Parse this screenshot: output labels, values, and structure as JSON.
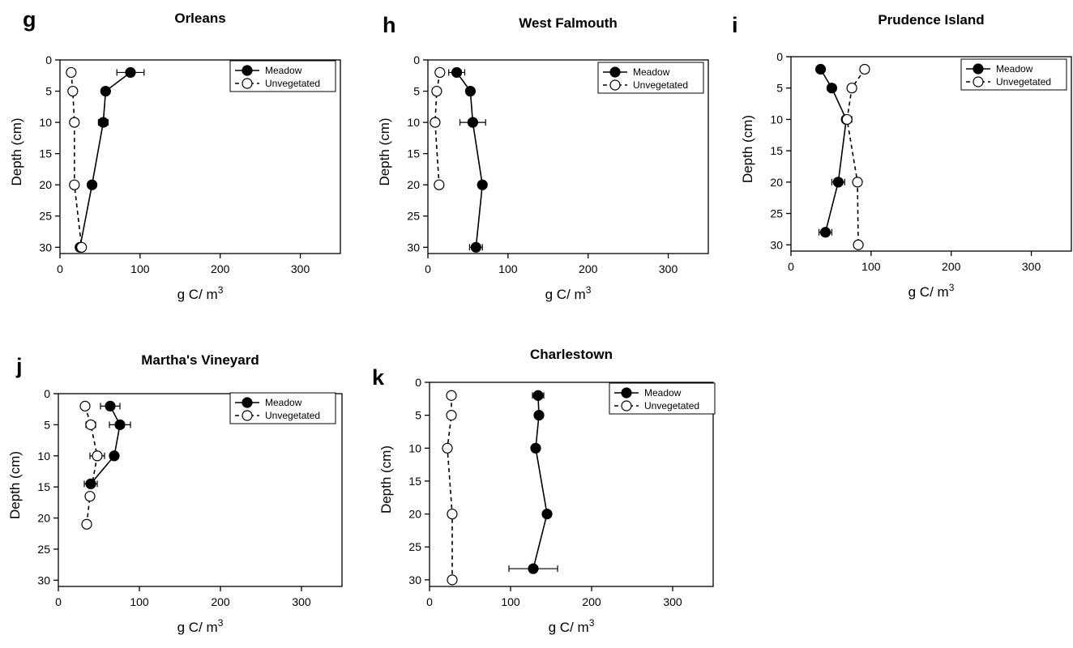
{
  "figure": {
    "background": "#ffffff",
    "line_color": "#000000",
    "meadow_fill": "#000000",
    "unvegetated_fill": "#ffffff"
  },
  "chart_data": [
    {
      "type": "line",
      "panel_label": "g",
      "title": "Orleans",
      "xlabel": "g C/ m",
      "xlabel_sup": "3",
      "ylabel": "Depth (cm)",
      "xlim": [
        0,
        350
      ],
      "ylim": [
        0,
        31
      ],
      "y_inverted": true,
      "x_ticks": [
        0,
        100,
        200,
        300
      ],
      "y_ticks": [
        0,
        5,
        10,
        15,
        20,
        25,
        30
      ],
      "legend": "top-right",
      "series": [
        {
          "name": "Meadow",
          "style": "solid",
          "marker": "filled-circle",
          "points": [
            {
              "x": 88,
              "y": 2,
              "xerr": 17
            },
            {
              "x": 57,
              "y": 5,
              "xerr": 0
            },
            {
              "x": 54,
              "y": 10,
              "xerr": 6
            },
            {
              "x": 40,
              "y": 20,
              "xerr": 0
            },
            {
              "x": 25,
              "y": 30,
              "xerr": 0
            }
          ]
        },
        {
          "name": "Unvegetated",
          "style": "dashed",
          "marker": "open-circle",
          "points": [
            {
              "x": 14,
              "y": 2,
              "xerr": 0
            },
            {
              "x": 16,
              "y": 5,
              "xerr": 0
            },
            {
              "x": 18,
              "y": 10,
              "xerr": 0
            },
            {
              "x": 18,
              "y": 20,
              "xerr": 0
            },
            {
              "x": 27,
              "y": 30,
              "xerr": 0
            }
          ]
        }
      ]
    },
    {
      "type": "line",
      "panel_label": "h",
      "title": "West Falmouth",
      "xlabel": "g C/ m",
      "xlabel_sup": "3",
      "ylabel": "Depth (cm)",
      "xlim": [
        0,
        350
      ],
      "ylim": [
        0,
        31
      ],
      "y_inverted": true,
      "x_ticks": [
        0,
        100,
        200,
        300
      ],
      "y_ticks": [
        0,
        5,
        10,
        15,
        20,
        25,
        30
      ],
      "legend": "top-right",
      "series": [
        {
          "name": "Meadow",
          "style": "solid",
          "marker": "filled-circle",
          "points": [
            {
              "x": 36,
              "y": 2,
              "xerr": 10
            },
            {
              "x": 53,
              "y": 5,
              "xerr": 0
            },
            {
              "x": 56,
              "y": 10,
              "xerr": 16
            },
            {
              "x": 68,
              "y": 20,
              "xerr": 0
            },
            {
              "x": 60,
              "y": 30,
              "xerr": 8
            }
          ]
        },
        {
          "name": "Unvegetated",
          "style": "dashed",
          "marker": "open-circle",
          "points": [
            {
              "x": 15,
              "y": 2,
              "xerr": 0
            },
            {
              "x": 11,
              "y": 5,
              "xerr": 0
            },
            {
              "x": 9,
              "y": 10,
              "xerr": 0
            },
            {
              "x": 14,
              "y": 20,
              "xerr": 0
            }
          ]
        }
      ]
    },
    {
      "type": "line",
      "panel_label": "i",
      "title": "Prudence Island",
      "xlabel": "g C/ m",
      "xlabel_sup": "3",
      "ylabel": "Depth (cm)",
      "xlim": [
        0,
        350
      ],
      "ylim": [
        0,
        31
      ],
      "y_inverted": true,
      "x_ticks": [
        0,
        100,
        200,
        300
      ],
      "y_ticks": [
        0,
        5,
        10,
        15,
        20,
        25,
        30
      ],
      "legend": "top-right",
      "series": [
        {
          "name": "Meadow",
          "style": "solid",
          "marker": "filled-circle",
          "points": [
            {
              "x": 37,
              "y": 2,
              "xerr": 0
            },
            {
              "x": 51,
              "y": 5,
              "xerr": 0
            },
            {
              "x": 69,
              "y": 10,
              "xerr": 0
            },
            {
              "x": 59,
              "y": 20,
              "xerr": 8
            },
            {
              "x": 43,
              "y": 28,
              "xerr": 8
            }
          ]
        },
        {
          "name": "Unvegetated",
          "style": "dashed",
          "marker": "open-circle",
          "points": [
            {
              "x": 92,
              "y": 2,
              "xerr": 5
            },
            {
              "x": 76,
              "y": 5,
              "xerr": 0
            },
            {
              "x": 70,
              "y": 10,
              "xerr": 6
            },
            {
              "x": 83,
              "y": 20,
              "xerr": 0
            },
            {
              "x": 84,
              "y": 30,
              "xerr": 0
            }
          ]
        }
      ]
    },
    {
      "type": "line",
      "panel_label": "j",
      "title": "Martha's Vineyard",
      "xlabel": "g C/ m",
      "xlabel_sup": "3",
      "ylabel": "Depth (cm)",
      "xlim": [
        0,
        350
      ],
      "ylim": [
        0,
        31
      ],
      "y_inverted": true,
      "x_ticks": [
        0,
        100,
        200,
        300
      ],
      "y_ticks": [
        0,
        5,
        10,
        15,
        20,
        25,
        30
      ],
      "legend": "top-right",
      "series": [
        {
          "name": "Meadow",
          "style": "solid",
          "marker": "filled-circle",
          "points": [
            {
              "x": 64,
              "y": 2,
              "xerr": 12
            },
            {
              "x": 76,
              "y": 5,
              "xerr": 13
            },
            {
              "x": 69,
              "y": 10,
              "xerr": 0
            },
            {
              "x": 40,
              "y": 14.5,
              "xerr": 8
            }
          ]
        },
        {
          "name": "Unvegetated",
          "style": "dashed",
          "marker": "open-circle",
          "points": [
            {
              "x": 33,
              "y": 2,
              "xerr": 0
            },
            {
              "x": 40,
              "y": 5,
              "xerr": 6
            },
            {
              "x": 48,
              "y": 10,
              "xerr": 9
            },
            {
              "x": 39,
              "y": 16.5,
              "xerr": 0
            },
            {
              "x": 35,
              "y": 21,
              "xerr": 0
            }
          ]
        }
      ]
    },
    {
      "type": "line",
      "panel_label": "k",
      "title": "Charlestown",
      "xlabel": "g C/ m",
      "xlabel_sup": "3",
      "ylabel": "Depth (cm)",
      "xlim": [
        0,
        350
      ],
      "ylim": [
        0,
        31
      ],
      "y_inverted": true,
      "x_ticks": [
        0,
        100,
        200,
        300
      ],
      "y_ticks": [
        0,
        5,
        10,
        15,
        20,
        25,
        30
      ],
      "legend": "top-right",
      "series": [
        {
          "name": "Meadow",
          "style": "solid",
          "marker": "filled-circle",
          "points": [
            {
              "x": 134,
              "y": 2,
              "xerr": 7
            },
            {
              "x": 135,
              "y": 5,
              "xerr": 0
            },
            {
              "x": 131,
              "y": 10,
              "xerr": 0
            },
            {
              "x": 145,
              "y": 20,
              "xerr": 0
            },
            {
              "x": 128,
              "y": 28.3,
              "xerr": 30
            }
          ]
        },
        {
          "name": "Unvegetated",
          "style": "dashed",
          "marker": "open-circle",
          "points": [
            {
              "x": 27,
              "y": 2,
              "xerr": 0
            },
            {
              "x": 27,
              "y": 5,
              "xerr": 0
            },
            {
              "x": 22,
              "y": 10,
              "xerr": 0
            },
            {
              "x": 28,
              "y": 20,
              "xerr": 0
            },
            {
              "x": 28,
              "y": 30,
              "xerr": 0
            }
          ]
        }
      ]
    }
  ]
}
